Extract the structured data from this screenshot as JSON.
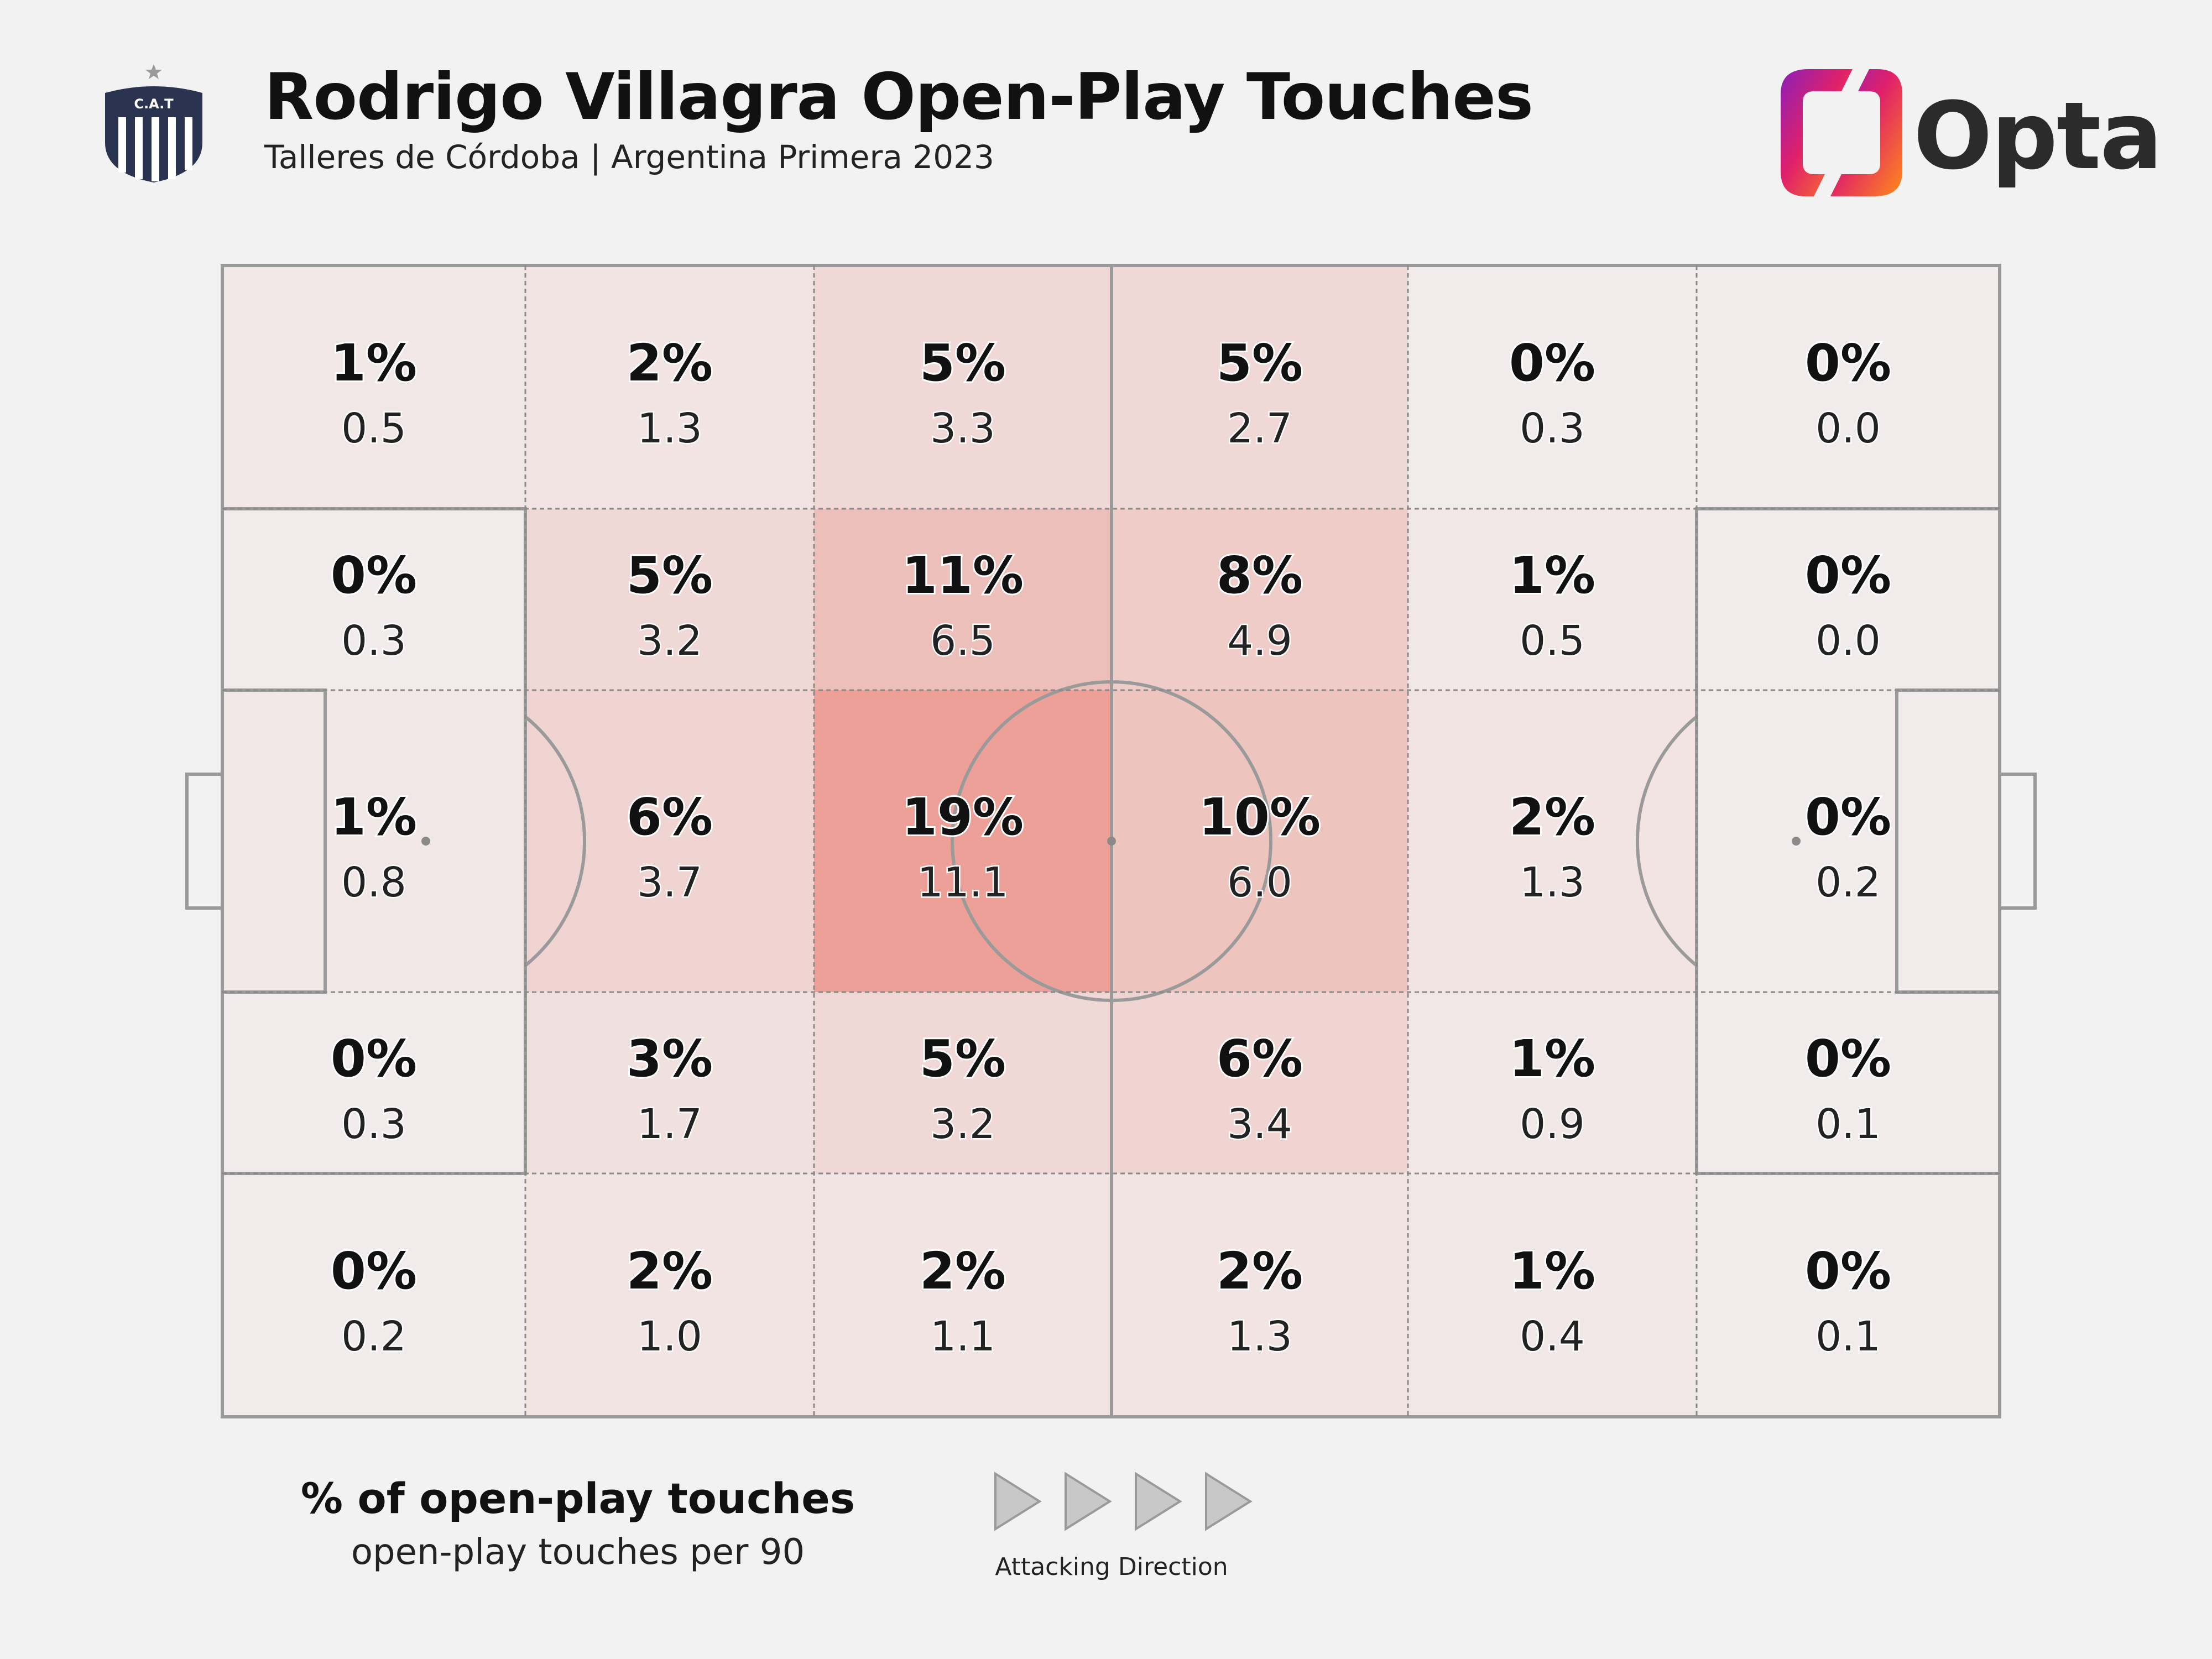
{
  "header": {
    "title": "Rodrigo Villagra Open-Play Touches",
    "subtitle": "Talleres de Córdoba | Argentina Primera 2023",
    "club_crest_text": "C.A.T",
    "brand": "Opta"
  },
  "legend": {
    "percent_label": "% of open-play touches",
    "per90_label": "open-play touches per 90",
    "direction_label": "Attacking Direction"
  },
  "colors": {
    "background": "#f2f2f2",
    "pitch_lines": "#9a9a9a",
    "zone_tint": "#e4402e",
    "dots": "#d94fb5",
    "text": "#111111"
  },
  "chart_data": {
    "type": "heatmap",
    "title": "Rodrigo Villagra Open-Play Touches",
    "columns": 6,
    "rows": 5,
    "attacking_direction": "left-to-right",
    "cells": [
      [
        {
          "pct": "1%",
          "per90": "0.5"
        },
        {
          "pct": "2%",
          "per90": "1.3"
        },
        {
          "pct": "5%",
          "per90": "3.3"
        },
        {
          "pct": "5%",
          "per90": "2.7"
        },
        {
          "pct": "0%",
          "per90": "0.3"
        },
        {
          "pct": "0%",
          "per90": "0.0"
        }
      ],
      [
        {
          "pct": "0%",
          "per90": "0.3"
        },
        {
          "pct": "5%",
          "per90": "3.2"
        },
        {
          "pct": "11%",
          "per90": "6.5"
        },
        {
          "pct": "8%",
          "per90": "4.9"
        },
        {
          "pct": "1%",
          "per90": "0.5"
        },
        {
          "pct": "0%",
          "per90": "0.0"
        }
      ],
      [
        {
          "pct": "1%",
          "per90": "0.8"
        },
        {
          "pct": "6%",
          "per90": "3.7"
        },
        {
          "pct": "19%",
          "per90": "11.1"
        },
        {
          "pct": "10%",
          "per90": "6.0"
        },
        {
          "pct": "2%",
          "per90": "1.3"
        },
        {
          "pct": "0%",
          "per90": "0.2"
        }
      ],
      [
        {
          "pct": "0%",
          "per90": "0.3"
        },
        {
          "pct": "3%",
          "per90": "1.7"
        },
        {
          "pct": "5%",
          "per90": "3.2"
        },
        {
          "pct": "6%",
          "per90": "3.4"
        },
        {
          "pct": "1%",
          "per90": "0.9"
        },
        {
          "pct": "0%",
          "per90": "0.1"
        }
      ],
      [
        {
          "pct": "0%",
          "per90": "0.2"
        },
        {
          "pct": "2%",
          "per90": "1.0"
        },
        {
          "pct": "2%",
          "per90": "1.1"
        },
        {
          "pct": "2%",
          "per90": "1.3"
        },
        {
          "pct": "1%",
          "per90": "0.4"
        },
        {
          "pct": "0%",
          "per90": "0.1"
        }
      ]
    ]
  }
}
